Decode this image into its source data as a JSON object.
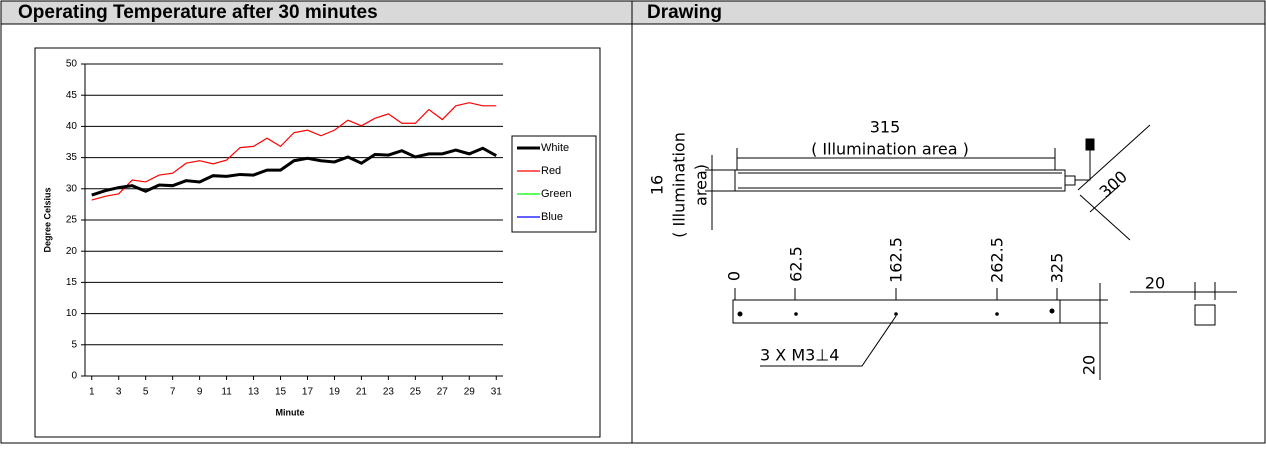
{
  "header": {
    "left": "Operating Temperature after 30 minutes",
    "right": "Drawing"
  },
  "chart_data": {
    "type": "line",
    "xlabel": "Minute",
    "ylabel": "Degree Celsius",
    "x": [
      1,
      2,
      3,
      4,
      5,
      6,
      7,
      8,
      9,
      10,
      11,
      12,
      13,
      14,
      15,
      16,
      17,
      18,
      19,
      20,
      21,
      22,
      23,
      24,
      25,
      26,
      27,
      28,
      29,
      30,
      31
    ],
    "xlim": [
      0.5,
      31.5
    ],
    "xticks": [
      1,
      3,
      5,
      7,
      9,
      11,
      13,
      15,
      17,
      19,
      21,
      23,
      25,
      27,
      29,
      31
    ],
    "ylim": [
      0,
      50
    ],
    "yticks": [
      0,
      5,
      10,
      15,
      20,
      25,
      30,
      35,
      40,
      45,
      50
    ],
    "grid": true,
    "legend": "right",
    "series": [
      {
        "name": "White",
        "color": "#000000",
        "width": 3,
        "values": [
          29,
          29.7,
          30.2,
          30.5,
          29.6,
          30.6,
          30.5,
          31.3,
          31.1,
          32.1,
          32,
          32.3,
          32.2,
          33,
          33,
          34.5,
          34.9,
          34.5,
          34.3,
          35.1,
          34.1,
          35.5,
          35.4,
          36.1,
          35.1,
          35.6,
          35.6,
          36.2,
          35.6,
          36.5,
          35.3
        ]
      },
      {
        "name": "Red",
        "color": "#ff0000",
        "width": 1.2,
        "values": [
          28.2,
          28.8,
          29.2,
          31.4,
          31.1,
          32.2,
          32.5,
          34.1,
          34.5,
          34,
          34.6,
          36.6,
          36.8,
          38.1,
          36.8,
          39,
          39.4,
          38.5,
          39.4,
          41,
          40.1,
          41.3,
          42,
          40.5,
          40.5,
          42.7,
          41.1,
          43.3,
          43.8,
          43.3,
          43.3
        ]
      },
      {
        "name": "Green",
        "color": "#00ff00",
        "width": 1.2,
        "values": [
          null,
          null,
          null,
          null,
          null,
          null,
          null,
          null,
          null,
          null,
          null,
          null,
          null,
          null,
          null,
          null,
          null,
          null,
          null,
          null,
          null,
          null,
          null,
          null,
          null,
          null,
          null,
          null,
          null,
          null,
          null
        ]
      },
      {
        "name": "Blue",
        "color": "#0000ff",
        "width": 1.2,
        "values": [
          null,
          null,
          null,
          null,
          null,
          null,
          null,
          null,
          null,
          null,
          null,
          null,
          null,
          null,
          null,
          null,
          null,
          null,
          null,
          null,
          null,
          null,
          null,
          null,
          null,
          null,
          null,
          null,
          null,
          null,
          null
        ]
      }
    ]
  },
  "drawing": {
    "length": "315",
    "length_note": "( Illumination area )",
    "height": "16",
    "height_note_1": "( Illumination",
    "height_note_2": "area)",
    "cable": "300",
    "positions": [
      "0",
      "62.5",
      "162.5",
      "262.5",
      "325"
    ],
    "thickness": "20",
    "holes": "3 X M3⊥4",
    "side": "20"
  }
}
